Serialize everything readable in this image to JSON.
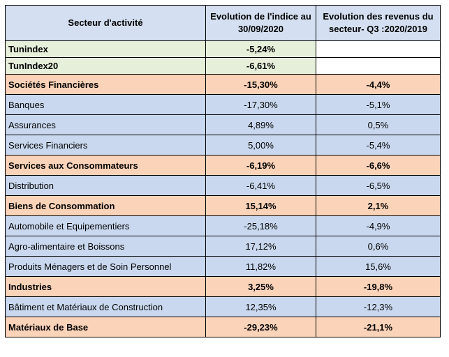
{
  "table": {
    "headers": {
      "sector": "Secteur d'activité",
      "index_line1": "Evolution  de l'indice au",
      "index_line2": "30/09/2020",
      "revenue_line1": "Evolution  des revenus du",
      "revenue_line2": "secteur- Q3 :2020/2019"
    },
    "rows": [
      {
        "label": "Tunindex",
        "index": "-5,24%",
        "revenue": "",
        "kind": "index"
      },
      {
        "label": "TunIndex20",
        "index": "-6,61%",
        "revenue": "",
        "kind": "index"
      },
      {
        "label": "Sociétés Financières",
        "index": "-15,30%",
        "revenue": "-4,4%",
        "kind": "sector"
      },
      {
        "label": "Banques",
        "index": "-17,30%",
        "revenue": "-5,1%",
        "kind": "sub"
      },
      {
        "label": "Assurances",
        "index": "4,89%",
        "revenue": "0,5%",
        "kind": "sub"
      },
      {
        "label": "Services Financiers",
        "index": "5,00%",
        "revenue": "-5,4%",
        "kind": "sub"
      },
      {
        "label": "Services aux Consommateurs",
        "index": "-6,19%",
        "revenue": "-6,6%",
        "kind": "sector"
      },
      {
        "label": "Distribution",
        "index": "-6,41%",
        "revenue": "-6,5%",
        "kind": "sub"
      },
      {
        "label": "Biens de Consommation",
        "index": "15,14%",
        "revenue": "2,1%",
        "kind": "sector"
      },
      {
        "label": "Automobile et Equipementiers",
        "index": "-25,18%",
        "revenue": "-4,9%",
        "kind": "sub"
      },
      {
        "label": "Agro-alimentaire et Boissons",
        "index": "17,12%",
        "revenue": "0,6%",
        "kind": "sub"
      },
      {
        "label": "Produits Ménagers et de Soin Personnel",
        "index": "11,82%",
        "revenue": "15,6%",
        "kind": "sub"
      },
      {
        "label": "Industries",
        "index": "3,25%",
        "revenue": "-19,8%",
        "kind": "sector"
      },
      {
        "label": "Bâtiment et Matériaux de Construction",
        "index": "12,35%",
        "revenue": "-12,3%",
        "kind": "sub"
      },
      {
        "label": "Matériaux de Base",
        "index": "-29,23%",
        "revenue": "-21,1%",
        "kind": "sector"
      }
    ]
  }
}
